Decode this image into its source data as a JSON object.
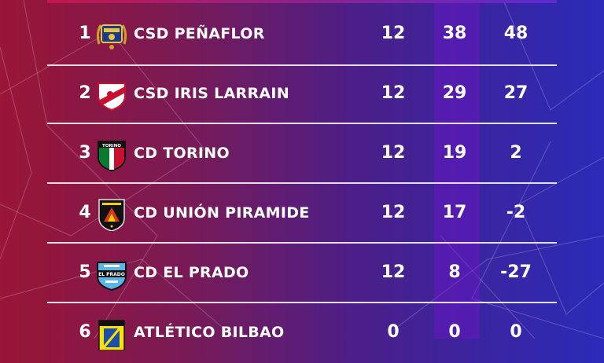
{
  "standings": [
    {
      "rank": "1",
      "team": "CSD PEÑAFLOR",
      "crest": "penaflor-crest-icon",
      "played": "12",
      "points": "38",
      "diff": "48"
    },
    {
      "rank": "2",
      "team": "CSD IRIS LARRAIN",
      "crest": "iris-larrain-crest-icon",
      "played": "12",
      "points": "29",
      "diff": "27"
    },
    {
      "rank": "3",
      "team": "CD TORINO",
      "crest": "torino-crest-icon",
      "played": "12",
      "points": "19",
      "diff": "2"
    },
    {
      "rank": "4",
      "team": "CD UNIÓN PIRAMIDE",
      "crest": "union-piramide-crest-icon",
      "played": "12",
      "points": "17",
      "diff": "-2"
    },
    {
      "rank": "5",
      "team": "CD EL PRADO",
      "crest": "el-prado-crest-icon",
      "played": "12",
      "points": "8",
      "diff": "-27"
    },
    {
      "rank": "6",
      "team": "ATLÉTICO BILBAO",
      "crest": "atletico-bilbao-crest-icon",
      "played": "0",
      "points": "0",
      "diff": "0"
    }
  ],
  "crest_texts": {
    "torino": "TORINO",
    "el_prado": "EL PRADO"
  },
  "colors": {
    "background_left": "#9a1536",
    "background_right": "#2a2bb8",
    "points_column": "#6e14c8",
    "text": "#ffffff"
  }
}
